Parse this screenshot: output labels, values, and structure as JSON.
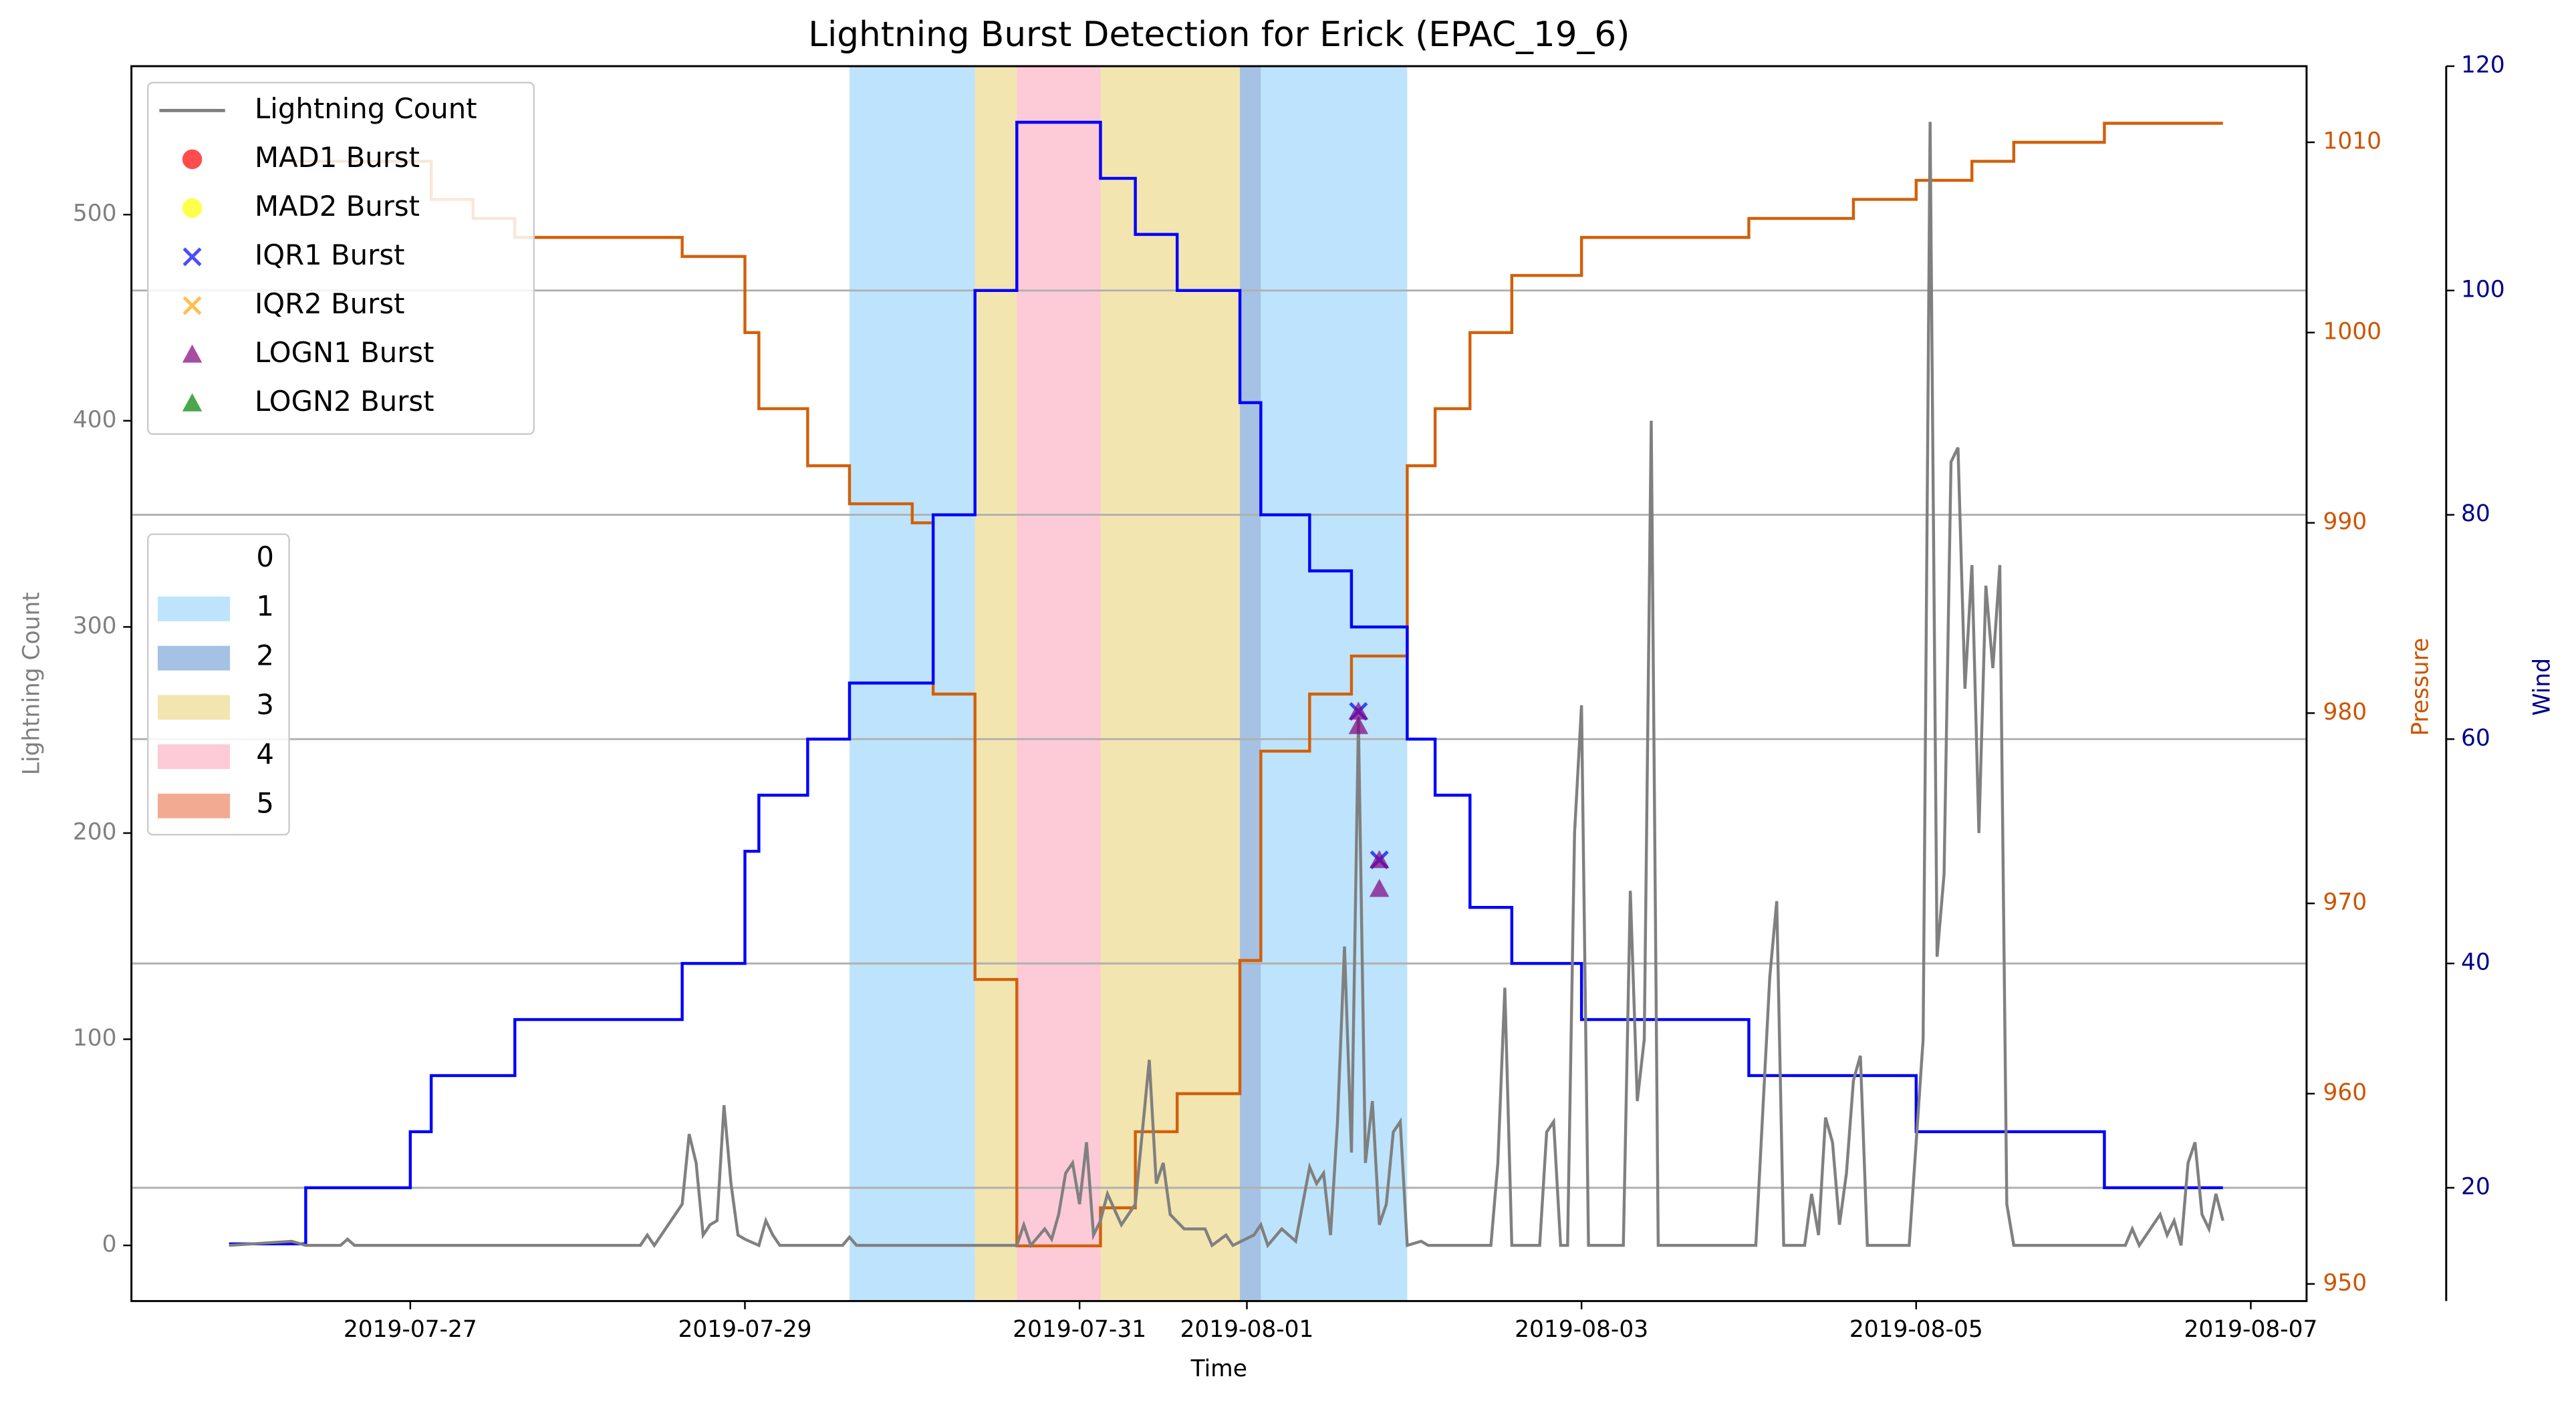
{
  "chart_data": {
    "type": "line",
    "title": "Lightning Burst Detection for Erick (EPAC_19_6)",
    "xlabel": "Time",
    "ylabel": "Lightning Count",
    "ylabel_color": "#808080",
    "y2label": "Pressure",
    "y2_color": "#cc5500",
    "y3label": "Wind",
    "y3_color": "#00008b",
    "xlim": [
      "2019-07-25T08:00",
      "2019-08-07T08:00"
    ],
    "xticks": [
      "2019-07-27",
      "2019-07-29",
      "2019-07-31",
      "2019-08-01",
      "2019-08-03",
      "2019-08-05",
      "2019-08-07"
    ],
    "ylim": [
      -27,
      572
    ],
    "yticks": [
      0,
      100,
      200,
      300,
      400,
      500
    ],
    "y2lim": [
      949.1,
      1014
    ],
    "y2ticks": [
      950,
      960,
      970,
      980,
      990,
      1000,
      1010
    ],
    "y3lim": [
      9.9,
      120
    ],
    "y3ticks": [
      20,
      40,
      60,
      80,
      100,
      120
    ],
    "grid": "y3",
    "legend": "upper left",
    "shading": {
      "alpha": 0.55,
      "legend": [
        {
          "label": "0",
          "color": "#ffffff"
        },
        {
          "label": "1",
          "color": "#87cefa"
        },
        {
          "label": "2",
          "color": "#5b8fd0"
        },
        {
          "label": "3",
          "color": "#e8d070"
        },
        {
          "label": "4",
          "color": "#fb9fb6"
        },
        {
          "label": "5",
          "color": "#e8653a"
        }
      ],
      "spans": [
        {
          "start": "2019-07-29T15:00",
          "end": "2019-07-30T09:00",
          "level": 1
        },
        {
          "start": "2019-07-30T09:00",
          "end": "2019-07-30T15:00",
          "level": 3
        },
        {
          "start": "2019-07-30T15:00",
          "end": "2019-07-31T03:00",
          "level": 4
        },
        {
          "start": "2019-07-31T03:00",
          "end": "2019-07-31T23:00",
          "level": 3
        },
        {
          "start": "2019-07-31T23:00",
          "end": "2019-08-01T02:00",
          "level": 2
        },
        {
          "start": "2019-08-01T02:00",
          "end": "2019-08-01T23:00",
          "level": 1
        }
      ]
    },
    "pressure": {
      "color": "#d2600a",
      "axis": "y2",
      "drawstyle": "steps-post",
      "x": [
        "2019-07-26T06:00",
        "2019-07-27T03:00",
        "2019-07-27T09:00",
        "2019-07-27T15:00",
        "2019-07-28T15:00",
        "2019-07-29T00:00",
        "2019-07-29T02:00",
        "2019-07-29T09:00",
        "2019-07-29T15:00",
        "2019-07-30T00:00",
        "2019-07-30T03:00",
        "2019-07-30T09:00",
        "2019-07-30T15:00",
        "2019-07-31T03:00",
        "2019-07-31T08:00",
        "2019-07-31T14:00",
        "2019-07-31T23:00",
        "2019-08-01T02:00",
        "2019-08-01T09:00",
        "2019-08-01T15:00",
        "2019-08-01T23:00",
        "2019-08-02T03:00",
        "2019-08-02T08:00",
        "2019-08-02T14:00",
        "2019-08-03T00:00",
        "2019-08-04T00:00",
        "2019-08-04T15:00",
        "2019-08-05T00:00",
        "2019-08-05T08:00",
        "2019-08-05T14:00",
        "2019-08-06T03:00",
        "2019-08-06T20:00"
      ],
      "values": [
        1009,
        1007,
        1006,
        1005,
        1004,
        1000,
        996,
        993,
        991,
        990,
        981,
        966,
        952,
        954,
        958,
        960,
        967,
        978,
        981,
        983,
        993,
        996,
        1000,
        1003,
        1005,
        1006,
        1007,
        1008,
        1009,
        1010,
        1011,
        1011
      ]
    },
    "wind": {
      "color": "#0000ff",
      "axis": "y3",
      "drawstyle": "steps-post",
      "x": [
        "2019-07-25T22:00",
        "2019-07-26T09:00",
        "2019-07-27T00:00",
        "2019-07-27T03:00",
        "2019-07-27T15:00",
        "2019-07-28T15:00",
        "2019-07-29T00:00",
        "2019-07-29T02:00",
        "2019-07-29T09:00",
        "2019-07-29T15:00",
        "2019-07-30T03:00",
        "2019-07-30T09:00",
        "2019-07-30T15:00",
        "2019-07-31T03:00",
        "2019-07-31T08:00",
        "2019-07-31T14:00",
        "2019-07-31T23:00",
        "2019-08-01T02:00",
        "2019-08-01T09:00",
        "2019-08-01T15:00",
        "2019-08-01T23:00",
        "2019-08-02T03:00",
        "2019-08-02T08:00",
        "2019-08-02T14:00",
        "2019-08-03T00:00",
        "2019-08-04T00:00",
        "2019-08-05T00:00",
        "2019-08-06T03:00",
        "2019-08-06T20:00"
      ],
      "values": [
        15,
        20,
        25,
        30,
        35,
        40,
        50,
        55,
        60,
        65,
        80,
        100,
        115,
        110,
        105,
        100,
        90,
        80,
        75,
        70,
        60,
        55,
        45,
        40,
        35,
        30,
        25,
        20,
        20
      ]
    },
    "series": [
      {
        "name": "Lightning Count",
        "color": "#808080",
        "marker": "line",
        "x": [
          "2019-07-25T22:00",
          "2019-07-26T07:00",
          "2019-07-26T09:00",
          "2019-07-26T14:00",
          "2019-07-26T15:00",
          "2019-07-26T16:00",
          "2019-07-28T09:00",
          "2019-07-28T10:00",
          "2019-07-28T11:00",
          "2019-07-28T15:00",
          "2019-07-28T16:00",
          "2019-07-28T17:00",
          "2019-07-28T18:00",
          "2019-07-28T19:00",
          "2019-07-28T20:00",
          "2019-07-28T21:00",
          "2019-07-28T22:00",
          "2019-07-28T23:00",
          "2019-07-29T00:00",
          "2019-07-29T02:00",
          "2019-07-29T03:00",
          "2019-07-29T04:00",
          "2019-07-29T05:00",
          "2019-07-29T14:00",
          "2019-07-29T15:00",
          "2019-07-29T16:00",
          "2019-07-30T15:00",
          "2019-07-30T16:00",
          "2019-07-30T17:00",
          "2019-07-30T19:00",
          "2019-07-30T20:00",
          "2019-07-30T21:00",
          "2019-07-30T22:00",
          "2019-07-30T23:00",
          "2019-07-31T00:00",
          "2019-07-31T01:00",
          "2019-07-31T02:00",
          "2019-07-31T03:00",
          "2019-07-31T04:00",
          "2019-07-31T06:00",
          "2019-07-31T08:00",
          "2019-07-31T10:00",
          "2019-07-31T11:00",
          "2019-07-31T12:00",
          "2019-07-31T13:00",
          "2019-07-31T15:00",
          "2019-07-31T18:00",
          "2019-07-31T19:00",
          "2019-07-31T21:00",
          "2019-07-31T22:00",
          "2019-08-01T01:00",
          "2019-08-01T02:00",
          "2019-08-01T03:00",
          "2019-08-01T05:00",
          "2019-08-01T07:00",
          "2019-08-01T09:00",
          "2019-08-01T10:00",
          "2019-08-01T11:00",
          "2019-08-01T12:00",
          "2019-08-01T13:00",
          "2019-08-01T14:00",
          "2019-08-01T15:00",
          "2019-08-01T16:00",
          "2019-08-01T17:00",
          "2019-08-01T18:00",
          "2019-08-01T19:00",
          "2019-08-01T20:00",
          "2019-08-01T21:00",
          "2019-08-01T22:00",
          "2019-08-01T23:00",
          "2019-08-02T01:00",
          "2019-08-02T02:00",
          "2019-08-02T11:00",
          "2019-08-02T12:00",
          "2019-08-02T13:00",
          "2019-08-02T14:00",
          "2019-08-02T18:00",
          "2019-08-02T19:00",
          "2019-08-02T20:00",
          "2019-08-02T21:00",
          "2019-08-02T22:00",
          "2019-08-02T23:00",
          "2019-08-03T00:00",
          "2019-08-03T01:00",
          "2019-08-03T06:00",
          "2019-08-03T07:00",
          "2019-08-03T08:00",
          "2019-08-03T09:00",
          "2019-08-03T10:00",
          "2019-08-03T11:00",
          "2019-08-04T01:00",
          "2019-08-04T03:00",
          "2019-08-04T04:00",
          "2019-08-04T05:00",
          "2019-08-04T08:00",
          "2019-08-04T09:00",
          "2019-08-04T10:00",
          "2019-08-04T11:00",
          "2019-08-04T12:00",
          "2019-08-04T13:00",
          "2019-08-04T14:00",
          "2019-08-04T15:00",
          "2019-08-04T16:00",
          "2019-08-04T17:00",
          "2019-08-04T23:00",
          "2019-08-05T01:00",
          "2019-08-05T02:00",
          "2019-08-05T03:00",
          "2019-08-05T04:00",
          "2019-08-05T05:00",
          "2019-08-05T06:00",
          "2019-08-05T07:00",
          "2019-08-05T08:00",
          "2019-08-05T09:00",
          "2019-08-05T10:00",
          "2019-08-05T11:00",
          "2019-08-05T12:00",
          "2019-08-05T13:00",
          "2019-08-05T14:00",
          "2019-08-06T06:00",
          "2019-08-06T07:00",
          "2019-08-06T08:00",
          "2019-08-06T11:00",
          "2019-08-06T12:00",
          "2019-08-06T13:00",
          "2019-08-06T14:00",
          "2019-08-06T15:00",
          "2019-08-06T16:00",
          "2019-08-06T17:00",
          "2019-08-06T18:00",
          "2019-08-06T19:00",
          "2019-08-06T20:00"
        ],
        "values": [
          0,
          2,
          0,
          0,
          3,
          0,
          0,
          5,
          0,
          20,
          54,
          40,
          5,
          10,
          12,
          68,
          30,
          5,
          3,
          0,
          12,
          5,
          0,
          0,
          4,
          0,
          0,
          10,
          0,
          8,
          3,
          15,
          35,
          40,
          20,
          50,
          5,
          12,
          25,
          10,
          20,
          90,
          30,
          40,
          15,
          8,
          8,
          0,
          5,
          0,
          5,
          10,
          0,
          8,
          2,
          38,
          30,
          35,
          5,
          60,
          145,
          45,
          255,
          40,
          70,
          10,
          20,
          55,
          60,
          0,
          2,
          0,
          0,
          40,
          125,
          0,
          0,
          55,
          60,
          0,
          0,
          200,
          262,
          0,
          0,
          172,
          70,
          100,
          400,
          0,
          0,
          130,
          167,
          0,
          0,
          25,
          5,
          62,
          50,
          10,
          35,
          80,
          92,
          0,
          0,
          100,
          545,
          140,
          180,
          380,
          387,
          270,
          330,
          200,
          320,
          280,
          330,
          20,
          0,
          0,
          8,
          0,
          15,
          5,
          12,
          0,
          40,
          50,
          15,
          8,
          25,
          12
        ]
      },
      {
        "name": "MAD1 Burst",
        "color": "#ff0000",
        "marker": "o",
        "x": [],
        "values": []
      },
      {
        "name": "MAD2 Burst",
        "color": "#ffff00",
        "marker": "o",
        "x": [],
        "values": []
      },
      {
        "name": "IQR1 Burst",
        "color": "#0000ff",
        "marker": "x",
        "x": [
          "2019-08-01T16:00",
          "2019-08-01T19:00"
        ],
        "values": [
          259,
          187
        ]
      },
      {
        "name": "IQR2 Burst",
        "color": "#ffa500",
        "marker": "x",
        "x": [],
        "values": []
      },
      {
        "name": "LOGN1 Burst",
        "color": "#800080",
        "marker": "^",
        "x": [
          "2019-08-01T16:00",
          "2019-08-01T16:00",
          "2019-08-01T19:00",
          "2019-08-01T19:00"
        ],
        "values": [
          259,
          252,
          187,
          173
        ]
      },
      {
        "name": "LOGN2 Burst",
        "color": "#008000",
        "marker": "^",
        "x": [],
        "values": []
      }
    ]
  }
}
